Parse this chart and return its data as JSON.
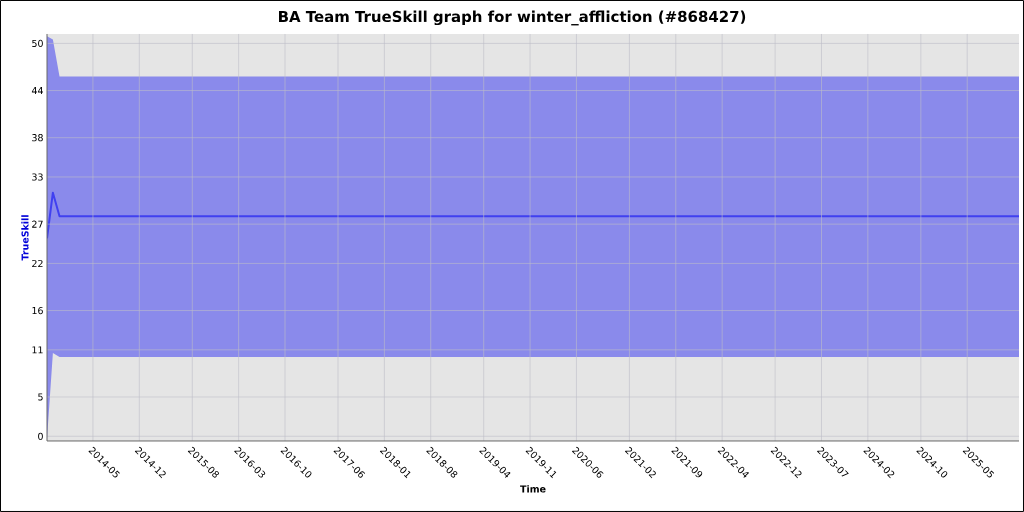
{
  "chart_data": {
    "type": "line",
    "title": "BA Team TrueSkill graph for winter_affliction (#868427)",
    "xlabel": "Time",
    "ylabel": "TrueSkill",
    "x": [
      "2013-10-03",
      "2013-10-30",
      "2013-11-30",
      "2025-12-26"
    ],
    "series": [
      {
        "color": "#4040f0",
        "values": [
          25.2,
          31.0,
          28.0,
          28.0
        ],
        "lower": [
          -0.3,
          10.6,
          10.1,
          10.1
        ],
        "upper": [
          50.9,
          50.5,
          45.8,
          45.8
        ]
      }
    ],
    "xlim": [
      "2013-10-03",
      "2025-12-26"
    ],
    "ylim": [
      -0.6,
      51.2
    ],
    "xticks": [
      "2014-05",
      "2014-12",
      "2015-08",
      "2016-03",
      "2016-10",
      "2017-06",
      "2018-01",
      "2018-08",
      "2019-04",
      "2019-11",
      "2020-06",
      "2021-02",
      "2021-09",
      "2022-04",
      "2022-12",
      "2023-07",
      "2024-02",
      "2024-10",
      "2025-05"
    ],
    "yticks": [
      0,
      5,
      11,
      16,
      22,
      27,
      33,
      38,
      44,
      50
    ],
    "grid": true
  }
}
